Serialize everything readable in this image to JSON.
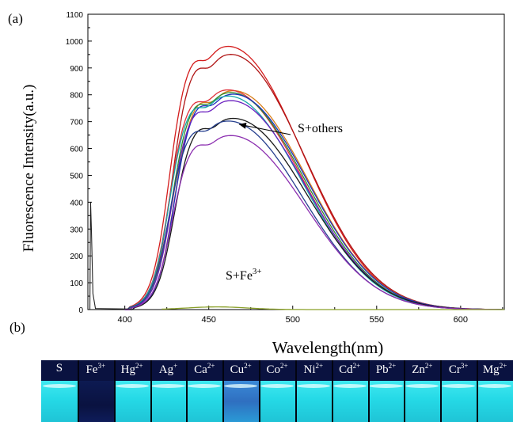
{
  "panels": {
    "a": "(a)",
    "b": "(b)"
  },
  "chart_data": {
    "type": "line",
    "xlabel": "Wavelength(nm)",
    "ylabel": "Fluorescence Intensity(a.u.)",
    "xlim": [
      378,
      626
    ],
    "ylim": [
      0,
      1100
    ],
    "xticks": [
      400,
      450,
      500,
      550,
      600
    ],
    "yticks": [
      0,
      100,
      200,
      300,
      400,
      500,
      600,
      700,
      800,
      900,
      1000,
      1100
    ],
    "grid": false,
    "annotations": [
      {
        "text": "S+others",
        "target": [
          468,
          690
        ]
      },
      {
        "text_main": "S+Fe",
        "text_sup": "3+"
      }
    ],
    "series": [
      {
        "color": "#d41c1c",
        "peak": 980
      },
      {
        "color": "#b01616",
        "peak": 950
      },
      {
        "color": "#d97f1a",
        "peak": 815
      },
      {
        "color": "#e0323c",
        "peak": 818
      },
      {
        "color": "#2d8a2d",
        "peak": 808
      },
      {
        "color": "#1b2fbf",
        "peak": 802
      },
      {
        "color": "#18a8a8",
        "peak": 795
      },
      {
        "color": "#6a1fbf",
        "peak": 778
      },
      {
        "color": "#1a1a1a",
        "peak": 712
      },
      {
        "color": "#27408f",
        "peak": 702
      },
      {
        "color": "#8c2fb0",
        "peak": 648
      },
      {
        "color": "#8aa028",
        "peak": 10,
        "fe": true
      }
    ]
  },
  "vials": [
    {
      "main": "S",
      "sup": "",
      "state": "bright"
    },
    {
      "main": "Fe",
      "sup": "3+",
      "state": "dark"
    },
    {
      "main": "Hg",
      "sup": "2+",
      "state": "bright"
    },
    {
      "main": "Ag",
      "sup": "+",
      "state": "bright"
    },
    {
      "main": "Ca",
      "sup": "2+",
      "state": "bright"
    },
    {
      "main": "Cu",
      "sup": "2+",
      "state": "dim"
    },
    {
      "main": "Co",
      "sup": "2+",
      "state": "bright"
    },
    {
      "main": "Ni",
      "sup": "2+",
      "state": "bright"
    },
    {
      "main": "Cd",
      "sup": "2+",
      "state": "bright"
    },
    {
      "main": "Pb",
      "sup": "2+",
      "state": "bright"
    },
    {
      "main": "Zn",
      "sup": "2+",
      "state": "bright"
    },
    {
      "main": "Cr",
      "sup": "3+",
      "state": "bright"
    },
    {
      "main": "Mg",
      "sup": "2+",
      "state": "bright"
    }
  ]
}
